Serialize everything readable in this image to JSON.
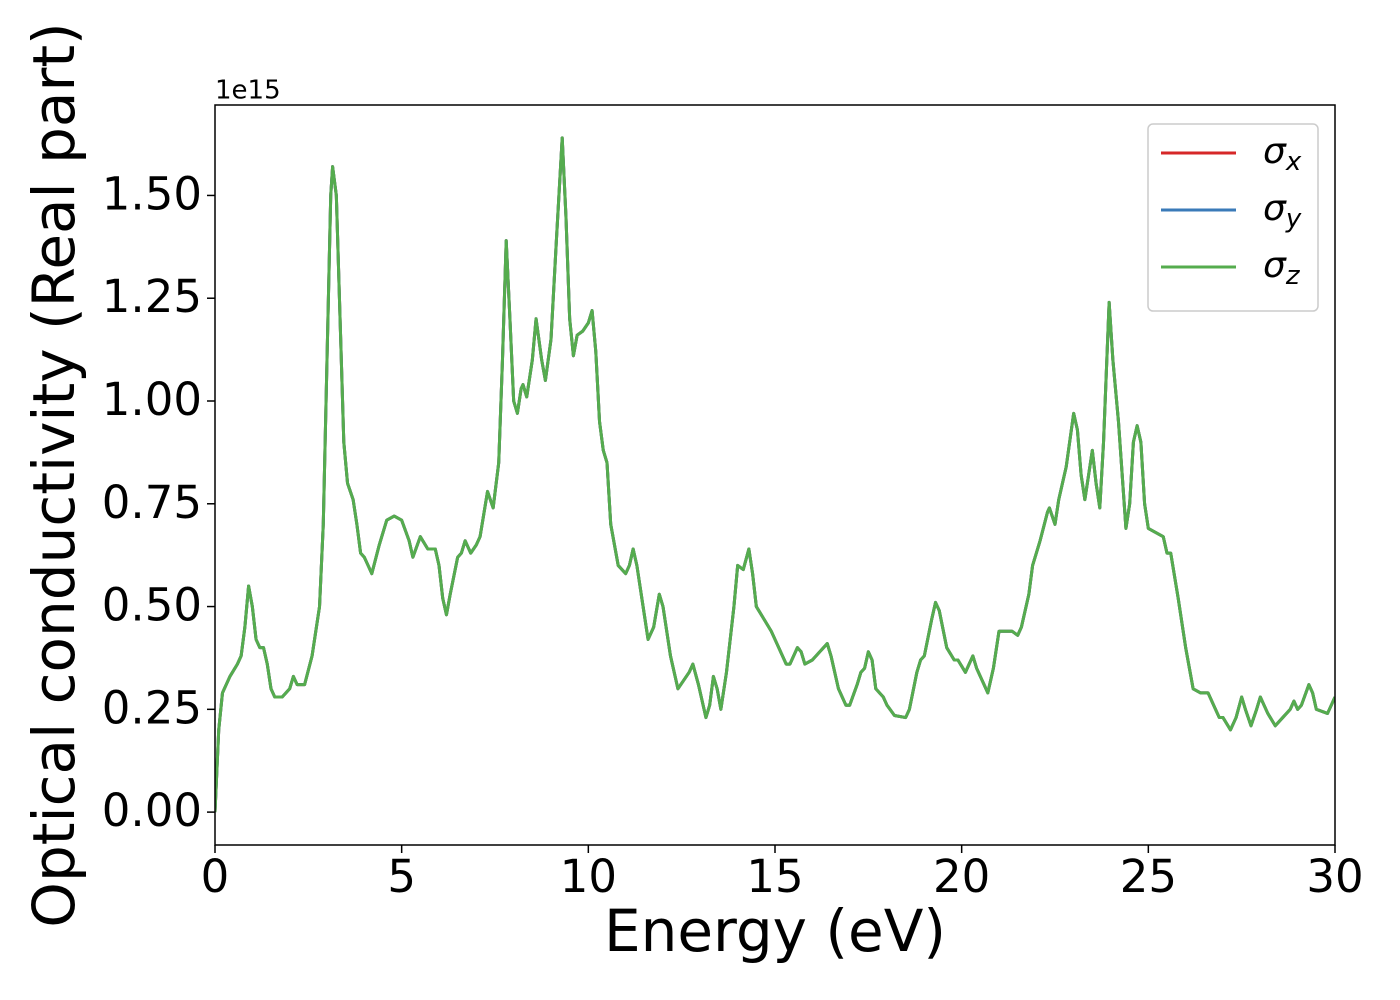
{
  "chart_data": {
    "type": "line",
    "xlabel": "Energy (eV)",
    "ylabel": "Optical conductivity (Real part)",
    "y_offset_label": "1e15",
    "x": [
      0,
      0.1,
      0.2,
      0.4,
      0.6,
      0.7,
      0.8,
      0.9,
      1.0,
      1.1,
      1.2,
      1.3,
      1.4,
      1.5,
      1.6,
      1.8,
      2.0,
      2.1,
      2.2,
      2.4,
      2.6,
      2.8,
      2.9,
      3.0,
      3.1,
      3.15,
      3.25,
      3.35,
      3.45,
      3.55,
      3.7,
      3.8,
      3.9,
      4.0,
      4.1,
      4.2,
      4.4,
      4.6,
      4.8,
      5.0,
      5.2,
      5.3,
      5.5,
      5.7,
      5.9,
      6.0,
      6.1,
      6.2,
      6.3,
      6.5,
      6.6,
      6.7,
      6.85,
      7.0,
      7.1,
      7.3,
      7.45,
      7.6,
      7.7,
      7.8,
      7.9,
      8.0,
      8.1,
      8.2,
      8.25,
      8.35,
      8.5,
      8.6,
      8.75,
      8.85,
      9.0,
      9.15,
      9.3,
      9.4,
      9.5,
      9.6,
      9.7,
      9.85,
      10.0,
      10.1,
      10.2,
      10.3,
      10.4,
      10.5,
      10.6,
      10.8,
      11.0,
      11.1,
      11.2,
      11.3,
      11.5,
      11.6,
      11.75,
      11.9,
      12.0,
      12.2,
      12.4,
      12.55,
      12.7,
      12.8,
      12.95,
      13.15,
      13.25,
      13.35,
      13.45,
      13.55,
      13.7,
      13.9,
      14.0,
      14.15,
      14.3,
      14.4,
      14.5,
      14.7,
      14.9,
      15.0,
      15.1,
      15.3,
      15.4,
      15.6,
      15.7,
      15.8,
      16.0,
      16.2,
      16.4,
      16.5,
      16.7,
      16.9,
      17.0,
      17.2,
      17.3,
      17.4,
      17.5,
      17.6,
      17.7,
      17.9,
      18.0,
      18.2,
      18.5,
      18.6,
      18.8,
      18.9,
      19.0,
      19.2,
      19.3,
      19.4,
      19.6,
      19.8,
      19.9,
      20.1,
      20.3,
      20.4,
      20.6,
      20.7,
      20.85,
      21.0,
      21.2,
      21.35,
      21.5,
      21.6,
      21.8,
      21.9,
      22.1,
      22.3,
      22.35,
      22.5,
      22.6,
      22.7,
      22.8,
      23.0,
      23.1,
      23.2,
      23.3,
      23.5,
      23.6,
      23.7,
      23.8,
      23.95,
      24.05,
      24.2,
      24.4,
      24.5,
      24.6,
      24.7,
      24.8,
      24.9,
      25.0,
      25.2,
      25.4,
      25.5,
      25.6,
      25.8,
      26.0,
      26.2,
      26.4,
      26.6,
      26.8,
      26.9,
      27.0,
      27.2,
      27.35,
      27.5,
      27.6,
      27.75,
      27.9,
      28.0,
      28.1,
      28.2,
      28.4,
      28.6,
      28.8,
      28.9,
      29.0,
      29.1,
      29.3,
      29.4,
      29.5,
      29.8,
      30.0
    ],
    "series": [
      {
        "name": "σx",
        "color": "#d62728",
        "values": [
          0,
          0.2,
          0.29,
          0.33,
          0.36,
          0.38,
          0.45,
          0.55,
          0.5,
          0.42,
          0.4,
          0.4,
          0.36,
          0.3,
          0.28,
          0.28,
          0.3,
          0.33,
          0.31,
          0.31,
          0.38,
          0.5,
          0.7,
          1.1,
          1.5,
          1.57,
          1.5,
          1.2,
          0.9,
          0.8,
          0.76,
          0.7,
          0.63,
          0.62,
          0.6,
          0.58,
          0.65,
          0.71,
          0.72,
          0.71,
          0.66,
          0.62,
          0.67,
          0.64,
          0.64,
          0.6,
          0.52,
          0.48,
          0.53,
          0.62,
          0.63,
          0.66,
          0.63,
          0.65,
          0.67,
          0.78,
          0.74,
          0.85,
          1.1,
          1.39,
          1.2,
          1.0,
          0.97,
          1.03,
          1.04,
          1.01,
          1.1,
          1.2,
          1.1,
          1.05,
          1.15,
          1.4,
          1.64,
          1.45,
          1.2,
          1.11,
          1.16,
          1.17,
          1.19,
          1.22,
          1.12,
          0.95,
          0.88,
          0.85,
          0.7,
          0.6,
          0.58,
          0.6,
          0.64,
          0.6,
          0.48,
          0.42,
          0.45,
          0.53,
          0.5,
          0.38,
          0.3,
          0.32,
          0.34,
          0.36,
          0.31,
          0.23,
          0.26,
          0.33,
          0.3,
          0.25,
          0.34,
          0.5,
          0.6,
          0.59,
          0.64,
          0.58,
          0.5,
          0.47,
          0.44,
          0.42,
          0.4,
          0.36,
          0.36,
          0.4,
          0.39,
          0.36,
          0.37,
          0.39,
          0.41,
          0.38,
          0.3,
          0.26,
          0.26,
          0.31,
          0.34,
          0.35,
          0.39,
          0.37,
          0.3,
          0.28,
          0.26,
          0.235,
          0.23,
          0.25,
          0.34,
          0.37,
          0.38,
          0.47,
          0.51,
          0.49,
          0.4,
          0.37,
          0.37,
          0.34,
          0.38,
          0.35,
          0.31,
          0.29,
          0.35,
          0.44,
          0.44,
          0.44,
          0.43,
          0.45,
          0.53,
          0.6,
          0.66,
          0.73,
          0.74,
          0.7,
          0.76,
          0.8,
          0.84,
          0.97,
          0.93,
          0.82,
          0.76,
          0.88,
          0.8,
          0.74,
          0.9,
          1.24,
          1.1,
          0.95,
          0.69,
          0.75,
          0.9,
          0.94,
          0.9,
          0.75,
          0.69,
          0.68,
          0.67,
          0.63,
          0.63,
          0.52,
          0.4,
          0.3,
          0.29,
          0.29,
          0.25,
          0.23,
          0.23,
          0.2,
          0.23,
          0.28,
          0.25,
          0.21,
          0.25,
          0.28,
          0.26,
          0.24,
          0.21,
          0.23,
          0.25,
          0.27,
          0.25,
          0.26,
          0.31,
          0.29,
          0.25,
          0.24,
          0.28
        ]
      },
      {
        "name": "σy",
        "color": "#3a7ab8",
        "values": [
          0,
          0.2,
          0.29,
          0.33,
          0.36,
          0.38,
          0.45,
          0.55,
          0.5,
          0.42,
          0.4,
          0.4,
          0.36,
          0.3,
          0.28,
          0.28,
          0.3,
          0.33,
          0.31,
          0.31,
          0.38,
          0.5,
          0.7,
          1.1,
          1.5,
          1.57,
          1.5,
          1.2,
          0.9,
          0.8,
          0.76,
          0.7,
          0.63,
          0.62,
          0.6,
          0.58,
          0.65,
          0.71,
          0.72,
          0.71,
          0.66,
          0.62,
          0.67,
          0.64,
          0.64,
          0.6,
          0.52,
          0.48,
          0.53,
          0.62,
          0.63,
          0.66,
          0.63,
          0.65,
          0.67,
          0.78,
          0.74,
          0.85,
          1.1,
          1.39,
          1.2,
          1.0,
          0.97,
          1.03,
          1.04,
          1.01,
          1.1,
          1.2,
          1.1,
          1.05,
          1.15,
          1.4,
          1.64,
          1.45,
          1.2,
          1.11,
          1.16,
          1.17,
          1.19,
          1.22,
          1.12,
          0.95,
          0.88,
          0.85,
          0.7,
          0.6,
          0.58,
          0.6,
          0.64,
          0.6,
          0.48,
          0.42,
          0.45,
          0.53,
          0.5,
          0.38,
          0.3,
          0.32,
          0.34,
          0.36,
          0.31,
          0.23,
          0.26,
          0.33,
          0.3,
          0.25,
          0.34,
          0.5,
          0.6,
          0.59,
          0.64,
          0.58,
          0.5,
          0.47,
          0.44,
          0.42,
          0.4,
          0.36,
          0.36,
          0.4,
          0.39,
          0.36,
          0.37,
          0.39,
          0.41,
          0.38,
          0.3,
          0.26,
          0.26,
          0.31,
          0.34,
          0.35,
          0.39,
          0.37,
          0.3,
          0.28,
          0.26,
          0.235,
          0.23,
          0.25,
          0.34,
          0.37,
          0.38,
          0.47,
          0.51,
          0.49,
          0.4,
          0.37,
          0.37,
          0.34,
          0.38,
          0.35,
          0.31,
          0.29,
          0.35,
          0.44,
          0.44,
          0.44,
          0.43,
          0.45,
          0.53,
          0.6,
          0.66,
          0.73,
          0.74,
          0.7,
          0.76,
          0.8,
          0.84,
          0.97,
          0.93,
          0.82,
          0.76,
          0.88,
          0.8,
          0.74,
          0.9,
          1.24,
          1.1,
          0.95,
          0.69,
          0.75,
          0.9,
          0.94,
          0.9,
          0.75,
          0.69,
          0.68,
          0.67,
          0.63,
          0.63,
          0.52,
          0.4,
          0.3,
          0.29,
          0.29,
          0.25,
          0.23,
          0.23,
          0.2,
          0.23,
          0.28,
          0.25,
          0.21,
          0.25,
          0.28,
          0.26,
          0.24,
          0.21,
          0.23,
          0.25,
          0.27,
          0.25,
          0.26,
          0.31,
          0.29,
          0.25,
          0.24,
          0.28
        ]
      },
      {
        "name": "σz",
        "color": "#55ac4e",
        "values": [
          0,
          0.2,
          0.29,
          0.33,
          0.36,
          0.38,
          0.45,
          0.55,
          0.5,
          0.42,
          0.4,
          0.4,
          0.36,
          0.3,
          0.28,
          0.28,
          0.3,
          0.33,
          0.31,
          0.31,
          0.38,
          0.5,
          0.7,
          1.1,
          1.5,
          1.57,
          1.5,
          1.2,
          0.9,
          0.8,
          0.76,
          0.7,
          0.63,
          0.62,
          0.6,
          0.58,
          0.65,
          0.71,
          0.72,
          0.71,
          0.66,
          0.62,
          0.67,
          0.64,
          0.64,
          0.6,
          0.52,
          0.48,
          0.53,
          0.62,
          0.63,
          0.66,
          0.63,
          0.65,
          0.67,
          0.78,
          0.74,
          0.85,
          1.1,
          1.39,
          1.2,
          1.0,
          0.97,
          1.03,
          1.04,
          1.01,
          1.1,
          1.2,
          1.1,
          1.05,
          1.15,
          1.4,
          1.64,
          1.45,
          1.2,
          1.11,
          1.16,
          1.17,
          1.19,
          1.22,
          1.12,
          0.95,
          0.88,
          0.85,
          0.7,
          0.6,
          0.58,
          0.6,
          0.64,
          0.6,
          0.48,
          0.42,
          0.45,
          0.53,
          0.5,
          0.38,
          0.3,
          0.32,
          0.34,
          0.36,
          0.31,
          0.23,
          0.26,
          0.33,
          0.3,
          0.25,
          0.34,
          0.5,
          0.6,
          0.59,
          0.64,
          0.58,
          0.5,
          0.47,
          0.44,
          0.42,
          0.4,
          0.36,
          0.36,
          0.4,
          0.39,
          0.36,
          0.37,
          0.39,
          0.41,
          0.38,
          0.3,
          0.26,
          0.26,
          0.31,
          0.34,
          0.35,
          0.39,
          0.37,
          0.3,
          0.28,
          0.26,
          0.235,
          0.23,
          0.25,
          0.34,
          0.37,
          0.38,
          0.47,
          0.51,
          0.49,
          0.4,
          0.37,
          0.37,
          0.34,
          0.38,
          0.35,
          0.31,
          0.29,
          0.35,
          0.44,
          0.44,
          0.44,
          0.43,
          0.45,
          0.53,
          0.6,
          0.66,
          0.73,
          0.74,
          0.7,
          0.76,
          0.8,
          0.84,
          0.97,
          0.93,
          0.82,
          0.76,
          0.88,
          0.8,
          0.74,
          0.9,
          1.24,
          1.1,
          0.95,
          0.69,
          0.75,
          0.9,
          0.94,
          0.9,
          0.75,
          0.69,
          0.68,
          0.67,
          0.63,
          0.63,
          0.52,
          0.4,
          0.3,
          0.29,
          0.29,
          0.25,
          0.23,
          0.23,
          0.2,
          0.23,
          0.28,
          0.25,
          0.21,
          0.25,
          0.28,
          0.26,
          0.24,
          0.21,
          0.23,
          0.25,
          0.27,
          0.25,
          0.26,
          0.31,
          0.29,
          0.25,
          0.24,
          0.28
        ]
      }
    ],
    "xlim": [
      0,
      30
    ],
    "xticks": [
      0,
      5,
      10,
      15,
      20,
      25,
      30
    ],
    "ylim": [
      -0.08,
      1.72
    ],
    "yticks": [
      {
        "value": 0,
        "label": "0.00"
      },
      {
        "value": 0.25,
        "label": "0.25"
      },
      {
        "value": 0.5,
        "label": "0.50"
      },
      {
        "value": 0.75,
        "label": "0.75"
      },
      {
        "value": 1,
        "label": "1.00"
      },
      {
        "value": 1.25,
        "label": "1.25"
      },
      {
        "value": 1.5,
        "label": "1.50"
      }
    ],
    "grid": false,
    "legend": "upper right"
  }
}
